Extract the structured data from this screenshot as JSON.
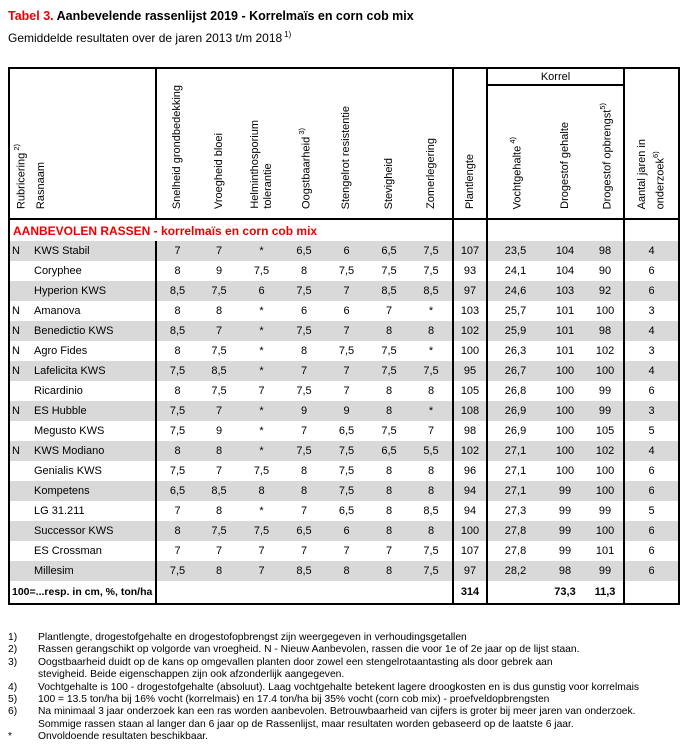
{
  "colors": {
    "accent_red": "#ee0000",
    "row_shade": "#d9d9d9",
    "border": "#000000"
  },
  "title": {
    "prefix": "Tabel 3.",
    "rest": " Aanbevelende rassenlijst 2019 - Korrelmaïs en corn cob mix"
  },
  "subtitle": {
    "text": "Gemiddelde resultaten over de jaren 2013 t/m 2018",
    "sup": "1)"
  },
  "table": {
    "korrel_group_label": "Korrel",
    "columns": [
      {
        "label": "Rubricering",
        "sup": " 2)"
      },
      {
        "label": "Rasnaam"
      },
      {
        "label": "Snelheid grondbedekking"
      },
      {
        "label": "Vroegheid bloei"
      },
      {
        "label": "Helminthosporium\ntolerantie"
      },
      {
        "label": "Oogstbaarheid",
        "sup": " 3)"
      },
      {
        "label": "Stengelrot resistentie"
      },
      {
        "label": "Stevigheid"
      },
      {
        "label": "Zomerlegering"
      },
      {
        "label": "Plantlengte"
      },
      {
        "label": "Vochtgehalte",
        "sup": " 4)"
      },
      {
        "label": "Drogestof gehalte"
      },
      {
        "label": "Drogestof opbrengst",
        "sup": "5)"
      },
      {
        "label": "Aantal jaren in\nonderzoek",
        "sup": "6)"
      }
    ],
    "section_header": "AANBEVOLEN RASSEN - korrelmaïs en corn cob mix",
    "rows": [
      {
        "rub": "N",
        "name": "KWS Stabil",
        "values": [
          "7",
          "7",
          "*",
          "6,5",
          "6",
          "6,5",
          "7,5",
          "107",
          "23,5",
          "104",
          "98",
          "4"
        ]
      },
      {
        "rub": "",
        "name": "Coryphee",
        "values": [
          "8",
          "9",
          "7,5",
          "8",
          "7,5",
          "7,5",
          "7,5",
          "93",
          "24,1",
          "104",
          "90",
          "6"
        ]
      },
      {
        "rub": "",
        "name": "Hyperion KWS",
        "values": [
          "8,5",
          "7,5",
          "6",
          "7,5",
          "7",
          "8,5",
          "8,5",
          "97",
          "24,6",
          "103",
          "92",
          "6"
        ]
      },
      {
        "rub": "N",
        "name": "Amanova",
        "values": [
          "8",
          "8",
          "*",
          "6",
          "6",
          "7",
          "*",
          "103",
          "25,7",
          "101",
          "100",
          "3"
        ]
      },
      {
        "rub": "N",
        "name": "Benedictio KWS",
        "values": [
          "8,5",
          "7",
          "*",
          "7,5",
          "7",
          "8",
          "8",
          "102",
          "25,9",
          "101",
          "98",
          "4"
        ]
      },
      {
        "rub": "N",
        "name": "Agro Fides",
        "values": [
          "8",
          "7,5",
          "*",
          "8",
          "7,5",
          "7,5",
          "*",
          "100",
          "26,3",
          "101",
          "102",
          "3"
        ]
      },
      {
        "rub": "N",
        "name": "Lafelicita KWS",
        "values": [
          "7,5",
          "8,5",
          "*",
          "7",
          "7",
          "7,5",
          "7,5",
          "95",
          "26,7",
          "100",
          "100",
          "4"
        ]
      },
      {
        "rub": "",
        "name": "Ricardinio",
        "values": [
          "8",
          "7,5",
          "7",
          "7,5",
          "7",
          "8",
          "8",
          "105",
          "26,8",
          "100",
          "99",
          "6"
        ]
      },
      {
        "rub": "N",
        "name": "ES Hubble",
        "values": [
          "7,5",
          "7",
          "*",
          "9",
          "9",
          "8",
          "*",
          "108",
          "26,9",
          "100",
          "99",
          "3"
        ]
      },
      {
        "rub": "",
        "name": "Megusto KWS",
        "values": [
          "7,5",
          "9",
          "*",
          "7",
          "6,5",
          "7,5",
          "7",
          "98",
          "26,9",
          "100",
          "105",
          "5"
        ]
      },
      {
        "rub": "N",
        "name": "KWS Modiano",
        "values": [
          "8",
          "8",
          "*",
          "7,5",
          "7,5",
          "6,5",
          "5,5",
          "102",
          "27,1",
          "100",
          "102",
          "4"
        ]
      },
      {
        "rub": "",
        "name": "Genialis KWS",
        "values": [
          "7,5",
          "7",
          "7,5",
          "8",
          "7,5",
          "8",
          "8",
          "96",
          "27,1",
          "100",
          "100",
          "6"
        ]
      },
      {
        "rub": "",
        "name": "Kompetens",
        "values": [
          "6,5",
          "8,5",
          "8",
          "8",
          "7,5",
          "8",
          "8",
          "94",
          "27,1",
          "99",
          "100",
          "6"
        ]
      },
      {
        "rub": "",
        "name": "LG 31.211",
        "values": [
          "7",
          "8",
          "*",
          "7",
          "6,5",
          "8",
          "8,5",
          "94",
          "27,3",
          "99",
          "99",
          "5"
        ]
      },
      {
        "rub": "",
        "name": "Successor KWS",
        "values": [
          "8",
          "7,5",
          "7,5",
          "6,5",
          "6",
          "8",
          "8",
          "100",
          "27,8",
          "99",
          "100",
          "6"
        ]
      },
      {
        "rub": "",
        "name": "ES Crossman",
        "values": [
          "7",
          "7",
          "7",
          "7",
          "7",
          "7",
          "7,5",
          "107",
          "27,8",
          "99",
          "101",
          "6"
        ]
      },
      {
        "rub": "",
        "name": "Millesim",
        "values": [
          "7,5",
          "8",
          "7",
          "8,5",
          "8",
          "8",
          "7,5",
          "97",
          "28,2",
          "98",
          "99",
          "6"
        ]
      }
    ],
    "footer": {
      "label": "100=...resp. in cm, %, ton/ha",
      "plantlengte": "314",
      "ds_gehalte": "73,3",
      "ds_opbrengst": "11,3"
    }
  },
  "footnotes": [
    {
      "marker": "1)",
      "text": "Plantlengte, drogestofgehalte en drogestofopbrengst zijn weergegeven in verhoudingsgetallen"
    },
    {
      "marker": "2)",
      "text": "Rassen gerangschikt op volgorde van vroegheid. N - Nieuw Aanbevolen, rassen die voor 1e of 2e jaar op de lijst staan."
    },
    {
      "marker": "3)",
      "text": "Oogstbaarheid duidt op de kans op omgevallen planten door zowel een stengelrotaantasting als door gebrek aan\nstevigheid. Beide eigenschappen zijn ook afzonderlijk aangegeven."
    },
    {
      "marker": "4)",
      "text": "Vochtgehalte is 100 - drogestofgehalte (absoluut). Laag vochtgehalte betekent lagere droogkosten en is dus gunstig voor korrelmais"
    },
    {
      "marker": "5)",
      "text": "100 = 13.5 ton/ha bij 16% vocht (korrelmais) en 17.4 ton/ha bij 35% vocht (corn cob mix) - proefveldopbrengsten"
    },
    {
      "marker": "6)",
      "text": "Na minimaal 3 jaar onderzoek kan een ras worden aanbevolen. Betrouwbaarheid van cijfers is groter bij meer jaren van onderzoek.\nSommige rassen staan al langer dan 6 jaar op de Rassenlijst, maar resultaten worden gebaseerd op de laatste 6 jaar."
    },
    {
      "marker": "*",
      "text": "Onvoldoende resultaten beschikbaar."
    }
  ]
}
